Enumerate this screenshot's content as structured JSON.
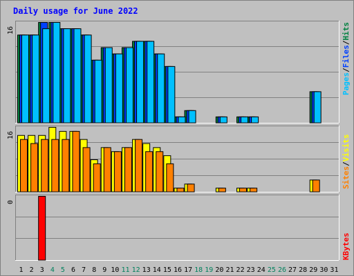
{
  "title": "Daily usage for June 2022",
  "chart_data": {
    "type": "bar",
    "title": "Daily usage for June 2022",
    "categories": [
      "1",
      "2",
      "3",
      "4",
      "5",
      "6",
      "7",
      "8",
      "9",
      "10",
      "11",
      "12",
      "13",
      "14",
      "15",
      "16",
      "17",
      "18",
      "19",
      "20",
      "21",
      "22",
      "23",
      "24",
      "25",
      "26",
      "27",
      "28",
      "29",
      "30",
      "31"
    ],
    "weekend_days": [
      4,
      5,
      11,
      12,
      18,
      19,
      25,
      26
    ],
    "colors": {
      "hits": "#008040",
      "files": "#0040ff",
      "pages": "#00c0ff",
      "visits": "#ffff00",
      "sites": "#ff8000",
      "kbytes": "#ff0000",
      "weekday_label": "#000000",
      "weekend_label": "#00805c"
    },
    "panels": [
      {
        "id": "top",
        "ymax": 16,
        "ymax_label": "16",
        "legend": [
          {
            "label": "Pages",
            "color": "#00c0ff"
          },
          {
            "label": "/",
            "color": "#000000"
          },
          {
            "label": "Files",
            "color": "#0040ff"
          },
          {
            "label": "/",
            "color": "#000000"
          },
          {
            "label": "Hits",
            "color": "#008040"
          }
        ],
        "series": [
          {
            "name": "Hits",
            "color": "#008040",
            "values": [
              14,
              14,
              16,
              16,
              15,
              15,
              14,
              10,
              12,
              11,
              12,
              13,
              13,
              11,
              9,
              1,
              2,
              0,
              0,
              1,
              0,
              1,
              1,
              0,
              0,
              0,
              0,
              0,
              5,
              0,
              0
            ]
          },
          {
            "name": "Files",
            "color": "#0040ff",
            "values": [
              14,
              14,
              16,
              16,
              15,
              15,
              14,
              10,
              12,
              11,
              12,
              13,
              13,
              11,
              9,
              1,
              2,
              0,
              0,
              1,
              0,
              1,
              1,
              0,
              0,
              0,
              0,
              0,
              5,
              0,
              0
            ]
          },
          {
            "name": "Pages",
            "color": "#00c0ff",
            "values": [
              14,
              14,
              15,
              16,
              15,
              15,
              14,
              10,
              12,
              11,
              12,
              13,
              13,
              11,
              9,
              1,
              2,
              0,
              0,
              1,
              0,
              1,
              1,
              0,
              0,
              0,
              0,
              0,
              5,
              0,
              0
            ]
          }
        ]
      },
      {
        "id": "middle",
        "ymax": 16,
        "ymax_label": "16",
        "legend": [
          {
            "label": "Sites",
            "color": "#ff8000"
          },
          {
            "label": "/",
            "color": "#000000"
          },
          {
            "label": "Visits",
            "color": "#ffff00"
          }
        ],
        "series": [
          {
            "name": "Visits",
            "color": "#ffff00",
            "values": [
              14,
              14,
              14,
              16,
              15,
              15,
              13,
              8,
              11,
              10,
              11,
              13,
              12,
              11,
              9,
              1,
              2,
              0,
              0,
              1,
              0,
              1,
              1,
              0,
              0,
              0,
              0,
              0,
              3,
              0,
              0
            ]
          },
          {
            "name": "Sites",
            "color": "#ff8000",
            "values": [
              13,
              12,
              13,
              13,
              13,
              15,
              11,
              7,
              11,
              10,
              11,
              13,
              10,
              10,
              7,
              1,
              2,
              0,
              0,
              1,
              0,
              1,
              1,
              0,
              0,
              0,
              0,
              0,
              3,
              0,
              0
            ]
          }
        ]
      },
      {
        "id": "bottom",
        "ymax": 1,
        "ymax_label": "0",
        "legend": [
          {
            "label": "KBytes",
            "color": "#ff0000"
          }
        ],
        "series": [
          {
            "name": "KBytes",
            "color": "#ff0000",
            "values": [
              0,
              0,
              1,
              0,
              0,
              0,
              0,
              0,
              0,
              0,
              0,
              0,
              0,
              0,
              0,
              0,
              0,
              0,
              0,
              0,
              0,
              0,
              0,
              0,
              0,
              0,
              0,
              0,
              0,
              0,
              0
            ]
          }
        ]
      }
    ]
  }
}
